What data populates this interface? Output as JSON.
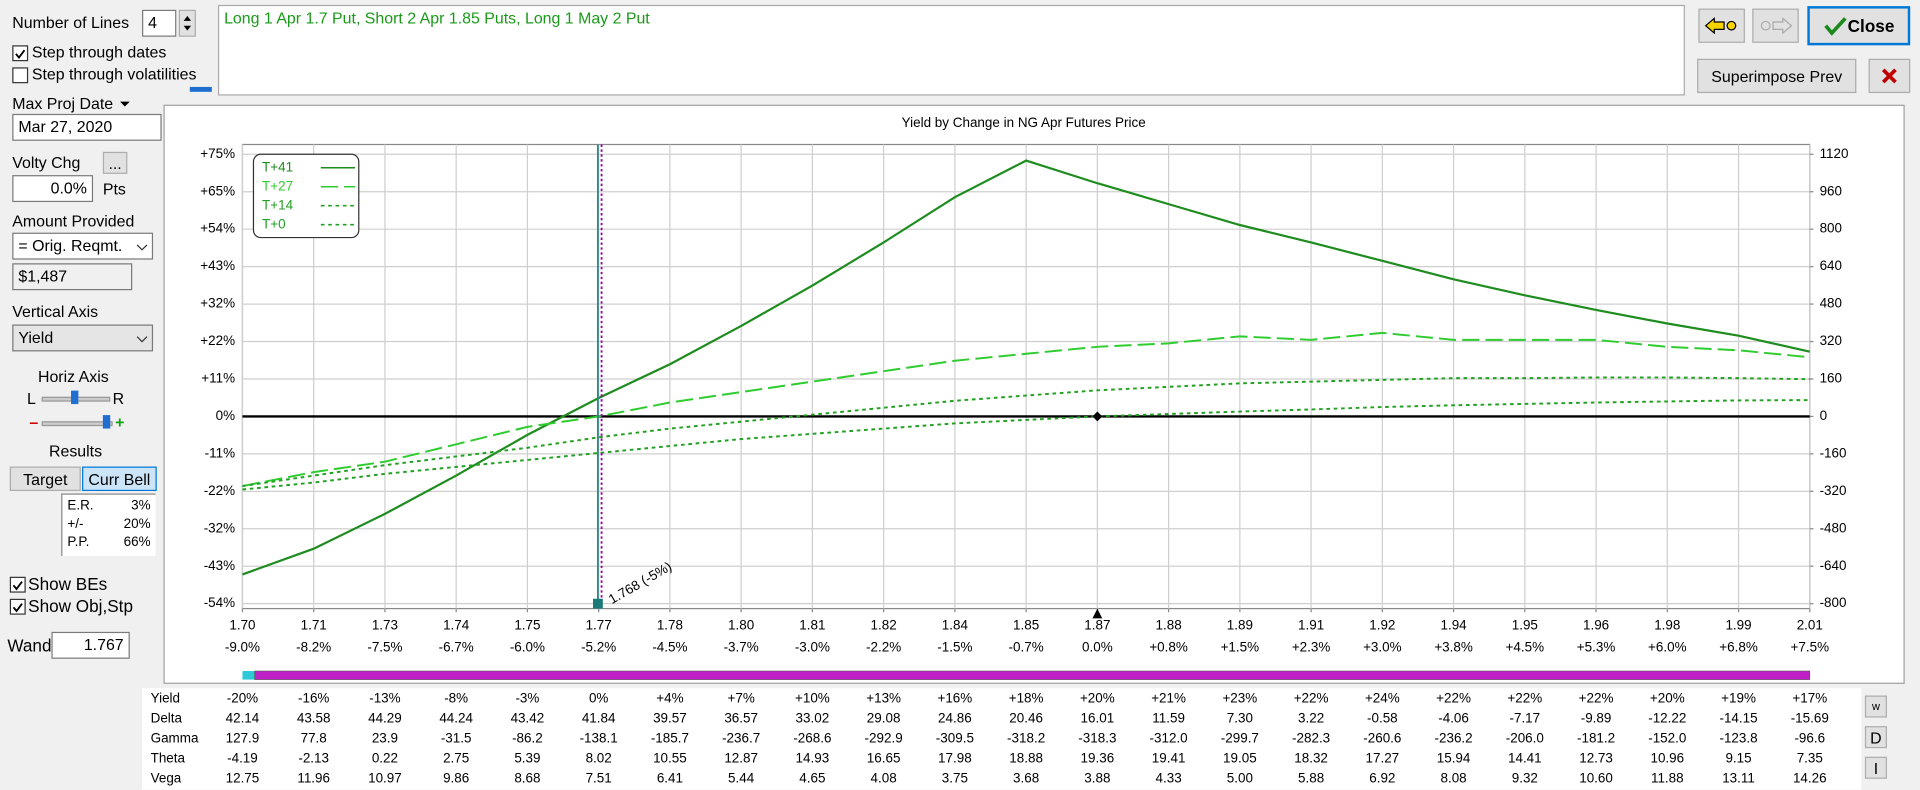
{
  "ui": {
    "number_of_lines_label": "Number of Lines",
    "number_of_lines": "4",
    "step_dates": "Step through dates",
    "step_vols": "Step through volatilities",
    "max_proj_date_label": "Max Proj Date",
    "max_proj_date": "Mar 27, 2020",
    "volty_chg_label": "Volty Chg",
    "volty_button": "...",
    "volty_chg": "0.0%",
    "pts": "Pts",
    "amount_label": "Amount Provided",
    "amount_select": "= Orig. Reqmt.",
    "amount": "$1,487",
    "vertical_axis_label": "Vertical Axis",
    "vertical_axis": "Yield",
    "horiz_axis_label": "Horiz Axis",
    "left": "L",
    "right": "R",
    "minus": "–",
    "plus": "+",
    "results_label": "Results",
    "target": "Target",
    "curr_bell": "Curr Bell",
    "stats": [
      {
        "label": "E.R.",
        "value": "3%"
      },
      {
        "label": "+/-",
        "value": "20%"
      },
      {
        "label": "P.P.",
        "value": "66%"
      }
    ],
    "show_bes": "Show BEs",
    "show_obj": "Show Obj,Stp",
    "wand_label": "Wand",
    "wand": "1.767",
    "strategy": "Long 1 Apr 1.7 Put, Short 2 Apr 1.85 Puts, Long 1 May 2 Put",
    "close": "Close",
    "superimpose": "Superimpose Prev",
    "table_buttons": [
      "w",
      "D",
      "I"
    ]
  },
  "chart_data": {
    "type": "line",
    "title": "Yield by Change in NG Apr Futures Price",
    "x": [
      1.698,
      1.71203,
      1.72606,
      1.74009,
      1.75412,
      1.76815,
      1.78218,
      1.79621,
      1.81024,
      1.82427,
      1.8383,
      1.85233,
      1.86636,
      1.88039,
      1.89442,
      1.90845,
      1.92248,
      1.93651,
      1.95054,
      1.96457,
      1.9786,
      1.99263,
      2.00666
    ],
    "xlim": [
      1.698,
      2.00666
    ],
    "xticks": [
      {
        "value": 1.698,
        "label": "1.70"
      },
      {
        "value": 1.71203,
        "label": "1.71"
      },
      {
        "value": 1.72606,
        "label": "1.73"
      },
      {
        "value": 1.74009,
        "label": "1.74"
      },
      {
        "value": 1.75412,
        "label": "1.75"
      },
      {
        "value": 1.76815,
        "label": "1.77"
      },
      {
        "value": 1.78218,
        "label": "1.78"
      },
      {
        "value": 1.79621,
        "label": "1.80"
      },
      {
        "value": 1.81024,
        "label": "1.81"
      },
      {
        "value": 1.82427,
        "label": "1.82"
      },
      {
        "value": 1.8383,
        "label": "1.84"
      },
      {
        "value": 1.85233,
        "label": "1.85"
      },
      {
        "value": 1.86636,
        "label": "1.87"
      },
      {
        "value": 1.88039,
        "label": "1.88"
      },
      {
        "value": 1.89442,
        "label": "1.89"
      },
      {
        "value": 1.90845,
        "label": "1.91"
      },
      {
        "value": 1.92248,
        "label": "1.92"
      },
      {
        "value": 1.93651,
        "label": "1.94"
      },
      {
        "value": 1.95054,
        "label": "1.95"
      },
      {
        "value": 1.96457,
        "label": "1.96"
      },
      {
        "value": 1.9786,
        "label": "1.98"
      },
      {
        "value": 1.99263,
        "label": "1.99"
      },
      {
        "value": 2.00666,
        "label": "2.01"
      }
    ],
    "x2lim": [
      -9,
      7.5
    ],
    "x2ticks": [
      {
        "value": -9,
        "label": "-9.0%"
      },
      {
        "value": -8.25,
        "label": "-8.2%"
      },
      {
        "value": -7.5,
        "label": "-7.5%"
      },
      {
        "value": -6.75,
        "label": "-6.7%"
      },
      {
        "value": -6,
        "label": "-6.0%"
      },
      {
        "value": -5.25,
        "label": "-5.2%"
      },
      {
        "value": -4.5,
        "label": "-4.5%"
      },
      {
        "value": -3.75,
        "label": "-3.7%"
      },
      {
        "value": -3,
        "label": "-3.0%"
      },
      {
        "value": -2.25,
        "label": "-2.2%"
      },
      {
        "value": -1.5,
        "label": "-1.5%"
      },
      {
        "value": -0.75,
        "label": "-0.7%"
      },
      {
        "value": 0,
        "label": "0.0%"
      },
      {
        "value": 0.75,
        "label": "+0.8%"
      },
      {
        "value": 1.5,
        "label": "+1.5%"
      },
      {
        "value": 2.25,
        "label": "+2.3%"
      },
      {
        "value": 3,
        "label": "+3.0%"
      },
      {
        "value": 3.75,
        "label": "+3.8%"
      },
      {
        "value": 4.5,
        "label": "+4.5%"
      },
      {
        "value": 5.25,
        "label": "+5.3%"
      },
      {
        "value": 6,
        "label": "+6.0%"
      },
      {
        "value": 6.75,
        "label": "+6.8%"
      },
      {
        "value": 7.5,
        "label": "+7.5%"
      }
    ],
    "ylim": [
      -53.8,
      75.32
    ],
    "yticks": [
      {
        "value": 75.32,
        "label": "+75%"
      },
      {
        "value": 64.56,
        "label": "+65%"
      },
      {
        "value": 53.8,
        "label": "+54%"
      },
      {
        "value": 43.04,
        "label": "+43%"
      },
      {
        "value": 32.28,
        "label": "+32%"
      },
      {
        "value": 21.52,
        "label": "+22%"
      },
      {
        "value": 10.76,
        "label": "+11%"
      },
      {
        "value": 0,
        "label": "0%"
      },
      {
        "value": -10.76,
        "label": "-11%"
      },
      {
        "value": -21.52,
        "label": "-22%"
      },
      {
        "value": -32.28,
        "label": "-32%"
      },
      {
        "value": -43.04,
        "label": "-43%"
      },
      {
        "value": -53.8,
        "label": "-54%"
      }
    ],
    "y2lim": [
      -800,
      1120
    ],
    "y2ticks": [
      1120,
      960,
      800,
      640,
      480,
      320,
      160,
      0,
      -160,
      -320,
      -480,
      -640,
      -800
    ],
    "grid": true,
    "legend": "top-left",
    "series": [
      {
        "name": "T+41",
        "color": "#1e8c1e",
        "style": "solid",
        "values": [
          -45.4,
          -38,
          -28,
          -17,
          -5.3,
          5.3,
          15,
          26,
          37.6,
          50,
          63,
          73.5,
          67,
          61,
          55,
          50,
          44.7,
          39.4,
          34.8,
          30.6,
          26.7,
          23.2,
          18.6
        ]
      },
      {
        "name": "T+27",
        "color": "#2ecc2e",
        "style": "dashed",
        "values": [
          -20,
          -16,
          -13,
          -8,
          -3,
          0,
          4,
          7,
          10,
          13,
          16,
          18,
          20,
          21,
          23,
          22,
          24,
          22,
          22,
          22,
          20,
          19,
          17
        ]
      },
      {
        "name": "T+14",
        "color": "#22a022",
        "style": "dotted",
        "values": [
          -20,
          -17,
          -14,
          -11.5,
          -9,
          -6,
          -3.5,
          -1.5,
          0.5,
          2.5,
          4.5,
          6,
          7.5,
          8.5,
          9.5,
          10,
          10.5,
          11,
          11,
          11.2,
          11.2,
          11,
          10.7
        ]
      },
      {
        "name": "T+0",
        "color": "#22a022",
        "style": "dotted",
        "values": [
          -21,
          -19,
          -16.5,
          -14.5,
          -12.5,
          -10.5,
          -8.5,
          -6.5,
          -5,
          -3.5,
          -2,
          -1,
          0,
          0.7,
          1.4,
          2,
          2.7,
          3.2,
          3.6,
          4,
          4.3,
          4.6,
          4.7
        ]
      }
    ],
    "wand_x": 1.768,
    "annotation": "1.768 (-5%)",
    "underlying": 1.86636
  },
  "table": {
    "rows": [
      {
        "label": "Yield",
        "cells": [
          "-20%",
          "-16%",
          "-13%",
          "-8%",
          "-3%",
          "0%",
          "+4%",
          "+7%",
          "+10%",
          "+13%",
          "+16%",
          "+18%",
          "+20%",
          "+21%",
          "+23%",
          "+22%",
          "+24%",
          "+22%",
          "+22%",
          "+22%",
          "+20%",
          "+19%",
          "+17%"
        ]
      },
      {
        "label": "Delta",
        "cells": [
          "42.14",
          "43.58",
          "44.29",
          "44.24",
          "43.42",
          "41.84",
          "39.57",
          "36.57",
          "33.02",
          "29.08",
          "24.86",
          "20.46",
          "16.01",
          "11.59",
          "7.30",
          "3.22",
          "-0.58",
          "-4.06",
          "-7.17",
          "-9.89",
          "-12.22",
          "-14.15",
          "-15.69"
        ]
      },
      {
        "label": "Gamma",
        "cells": [
          "127.9",
          "77.8",
          "23.9",
          "-31.5",
          "-86.2",
          "-138.1",
          "-185.7",
          "-236.7",
          "-268.6",
          "-292.9",
          "-309.5",
          "-318.2",
          "-318.3",
          "-312.0",
          "-299.7",
          "-282.3",
          "-260.6",
          "-236.2",
          "-206.0",
          "-181.2",
          "-152.0",
          "-123.8",
          "-96.6"
        ]
      },
      {
        "label": "Theta",
        "cells": [
          "-4.19",
          "-2.13",
          "0.22",
          "2.75",
          "5.39",
          "8.02",
          "10.55",
          "12.87",
          "14.93",
          "16.65",
          "17.98",
          "18.88",
          "19.36",
          "19.41",
          "19.05",
          "18.32",
          "17.27",
          "15.94",
          "14.41",
          "12.73",
          "10.96",
          "9.15",
          "7.35"
        ]
      },
      {
        "label": "Vega",
        "cells": [
          "12.75",
          "11.96",
          "10.97",
          "9.86",
          "8.68",
          "7.51",
          "6.41",
          "5.44",
          "4.65",
          "4.08",
          "3.75",
          "3.68",
          "3.88",
          "4.33",
          "5.00",
          "5.88",
          "6.92",
          "8.08",
          "9.32",
          "10.60",
          "11.88",
          "13.11",
          "14.26"
        ]
      }
    ]
  }
}
